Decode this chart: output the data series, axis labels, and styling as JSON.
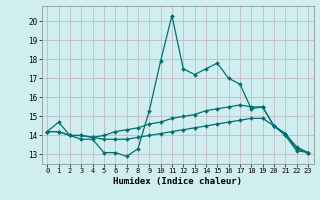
{
  "xlabel": "Humidex (Indice chaleur)",
  "xlim": [
    -0.5,
    23.5
  ],
  "ylim": [
    12.5,
    20.8
  ],
  "xticks": [
    0,
    1,
    2,
    3,
    4,
    5,
    6,
    7,
    8,
    9,
    10,
    11,
    12,
    13,
    14,
    15,
    16,
    17,
    18,
    19,
    20,
    21,
    22,
    23
  ],
  "yticks": [
    13,
    14,
    15,
    16,
    17,
    18,
    19,
    20
  ],
  "background_color": "#d0eef0",
  "grid_color": "#c0b0c0",
  "line_color": "#007070",
  "line_width": 0.9,
  "marker_size": 2.0,
  "curves": [
    {
      "x": [
        0,
        1,
        2,
        3,
        4,
        5,
        6,
        7,
        8,
        9,
        10,
        11,
        12,
        13,
        14,
        15,
        16,
        17,
        18,
        19,
        20,
        21,
        22,
        23
      ],
      "y": [
        14.2,
        14.7,
        14.0,
        13.8,
        13.8,
        13.1,
        13.1,
        12.9,
        13.3,
        15.3,
        17.9,
        20.3,
        17.5,
        17.2,
        17.5,
        17.8,
        17.0,
        16.7,
        15.4,
        15.5,
        14.5,
        14.1,
        13.4,
        13.1
      ]
    },
    {
      "x": [
        0,
        1,
        2,
        3,
        4,
        5,
        6,
        7,
        8,
        9,
        10,
        11,
        12,
        13,
        14,
        15,
        16,
        17,
        18,
        19,
        20,
        21,
        22,
        23
      ],
      "y": [
        14.2,
        14.2,
        14.0,
        14.0,
        13.9,
        14.0,
        14.2,
        14.3,
        14.4,
        14.6,
        14.7,
        14.9,
        15.0,
        15.1,
        15.3,
        15.4,
        15.5,
        15.6,
        15.5,
        15.5,
        14.5,
        14.0,
        13.2,
        13.1
      ]
    },
    {
      "x": [
        0,
        1,
        2,
        3,
        4,
        5,
        6,
        7,
        8,
        9,
        10,
        11,
        12,
        13,
        14,
        15,
        16,
        17,
        18,
        19,
        20,
        21,
        22,
        23
      ],
      "y": [
        14.2,
        14.2,
        14.0,
        14.0,
        13.9,
        13.8,
        13.8,
        13.8,
        13.9,
        14.0,
        14.1,
        14.2,
        14.3,
        14.4,
        14.5,
        14.6,
        14.7,
        14.8,
        14.9,
        14.9,
        14.5,
        14.1,
        13.3,
        13.1
      ]
    }
  ]
}
